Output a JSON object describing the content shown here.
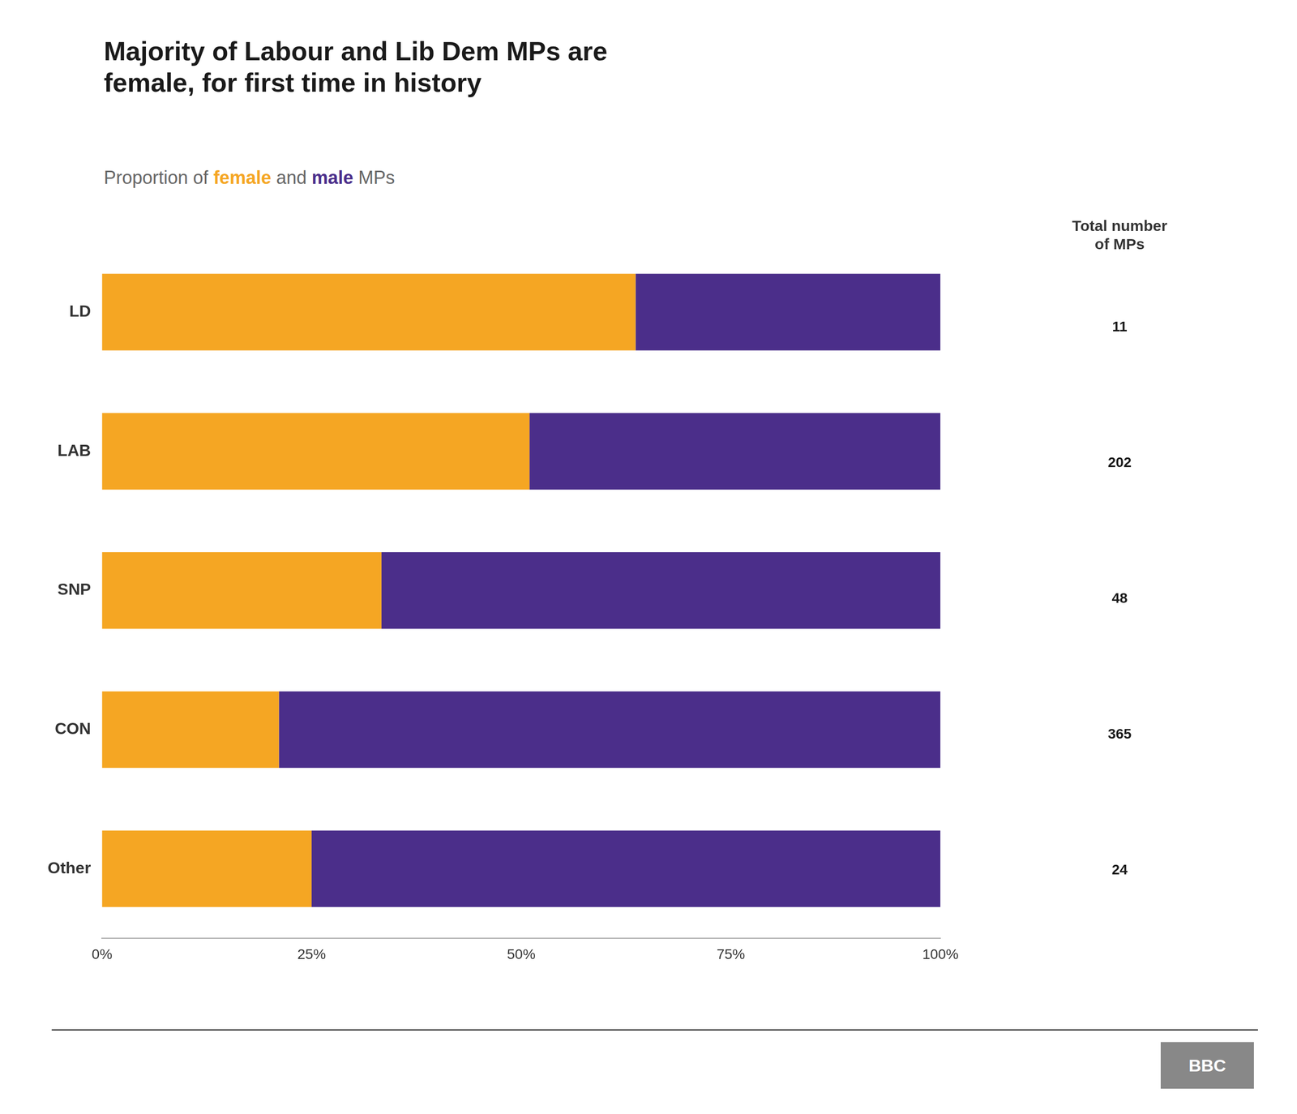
{
  "chart_data": [
    {
      "type": "bar",
      "title": "Majority of Labour and Lib Dem MPs are\nfemale, for first time in history",
      "subtitle": "Proportion of female and male MPs",
      "orientation": "horizontal",
      "stacked": true,
      "categories": [
        "LD",
        "LAB",
        "SNP",
        "CON",
        "Other"
      ],
      "series": [
        {
          "name": "female",
          "color": "#F5A623",
          "values": [
            0.6364,
            0.5099,
            0.3333,
            0.211,
            0.25
          ]
        },
        {
          "name": "male",
          "color": "#4B2E8A",
          "values": [
            0.3636,
            0.4901,
            0.6667,
            0.789,
            0.75
          ]
        }
      ],
      "xlim": [
        0,
        1
      ],
      "xticks": [
        {
          "value": 0,
          "label": "0%"
        },
        {
          "value": 0.25,
          "label": "25%"
        },
        {
          "value": 0.5,
          "label": "50%"
        },
        {
          "value": 0.75,
          "label": "75%"
        },
        {
          "value": 1.0,
          "label": "100%"
        }
      ],
      "grid": false,
      "annotations": [
        "BBC"
      ]
    },
    {
      "type": "bubble",
      "title": "Total number\nof MPs",
      "categories": [
        "LD",
        "LAB",
        "SNP",
        "CON",
        "Other"
      ],
      "values": [
        11,
        202,
        48,
        365,
        24
      ],
      "color": "#2ECC9A",
      "data_labels": true,
      "tick_labels": false
    }
  ]
}
